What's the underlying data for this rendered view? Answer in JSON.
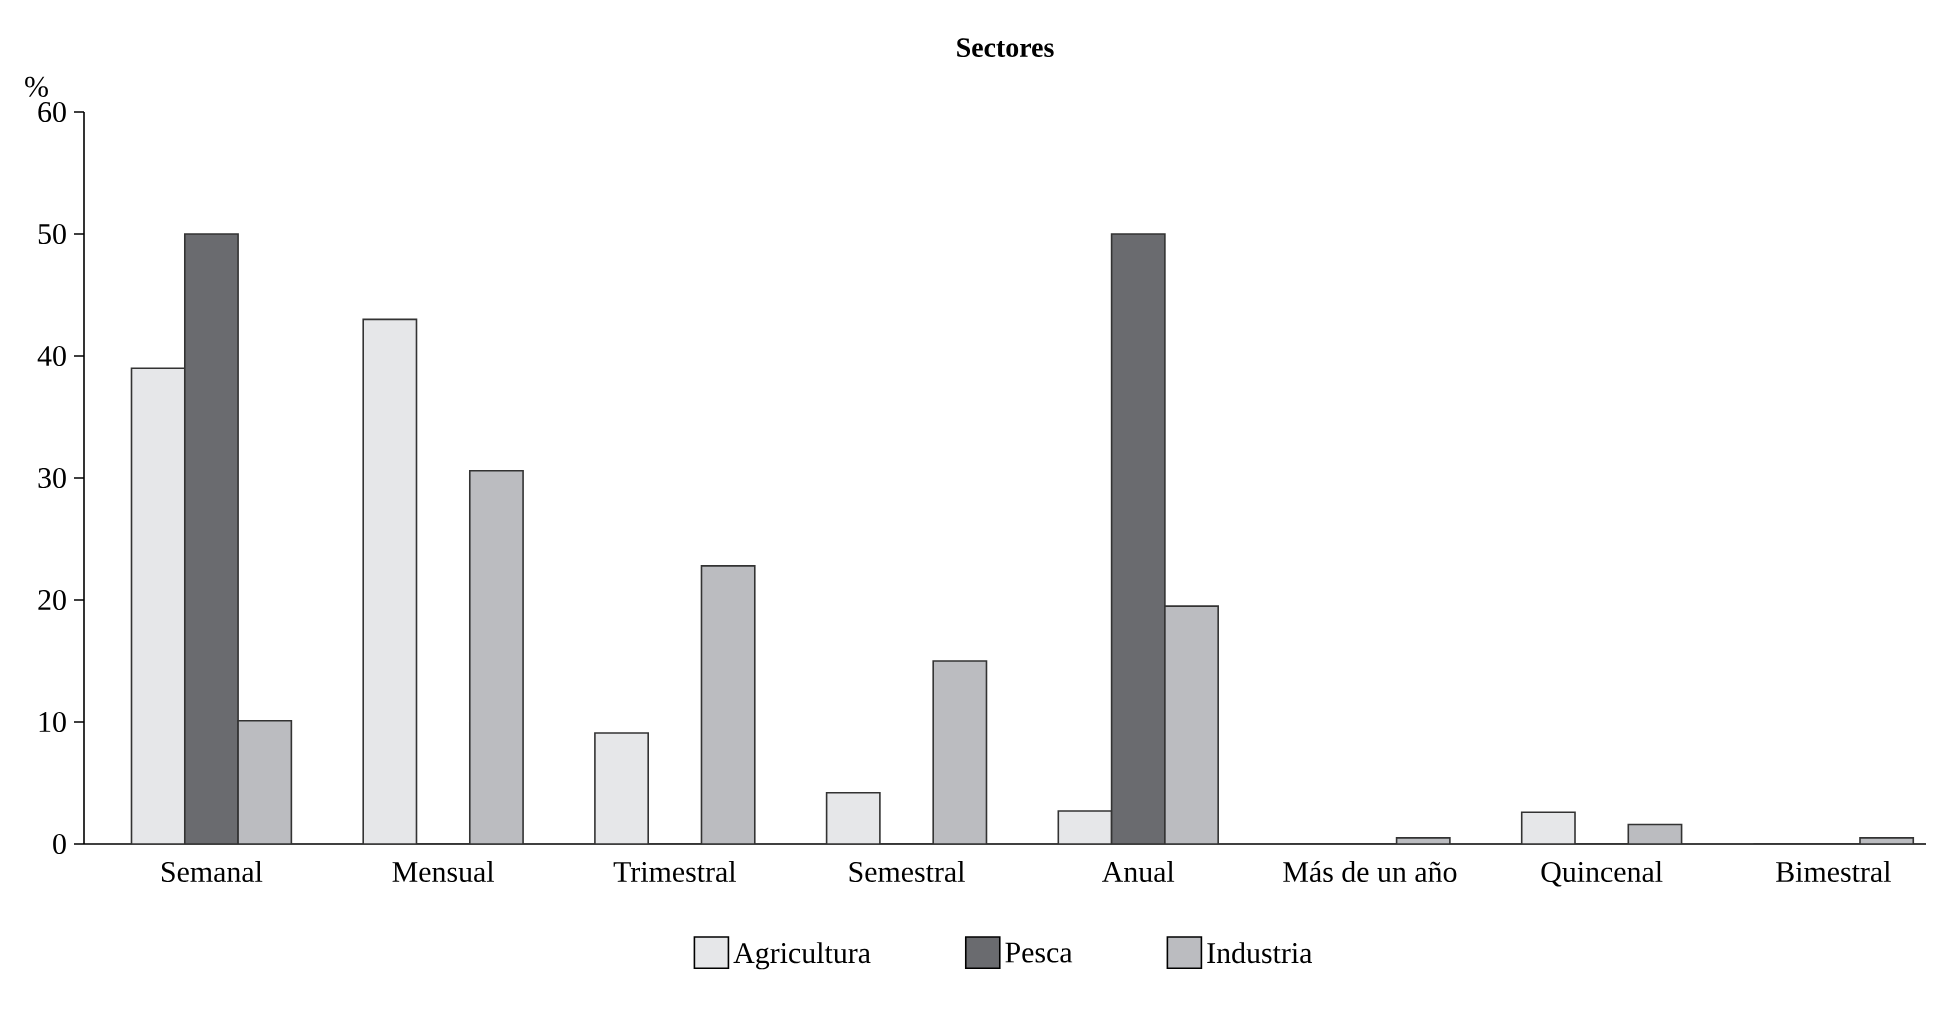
{
  "chart_data": {
    "type": "bar",
    "title": "Sectores",
    "ylabel": "%",
    "categories": [
      "Semanal",
      "Mensual",
      "Trimestral",
      "Semestral",
      "Anual",
      "Más de un año",
      "Quincenal",
      "Bimestral"
    ],
    "series": [
      {
        "name": "Agricultura",
        "color": "#e6e7e9",
        "values": [
          39,
          43,
          9.1,
          4.2,
          2.7,
          0,
          2.6,
          0
        ]
      },
      {
        "name": "Pesca",
        "color": "#6a6b6f",
        "values": [
          50,
          0,
          0,
          0,
          50,
          0,
          0,
          0
        ]
      },
      {
        "name": "Industria",
        "color": "#bbbcc0",
        "values": [
          10.1,
          30.6,
          22.8,
          15,
          19.5,
          0.5,
          1.6,
          0.5
        ]
      }
    ],
    "ylim": [
      0,
      60
    ],
    "yticks": [
      0,
      10,
      20,
      30,
      40,
      50,
      60
    ],
    "grid": false,
    "legend": "bottom"
  }
}
